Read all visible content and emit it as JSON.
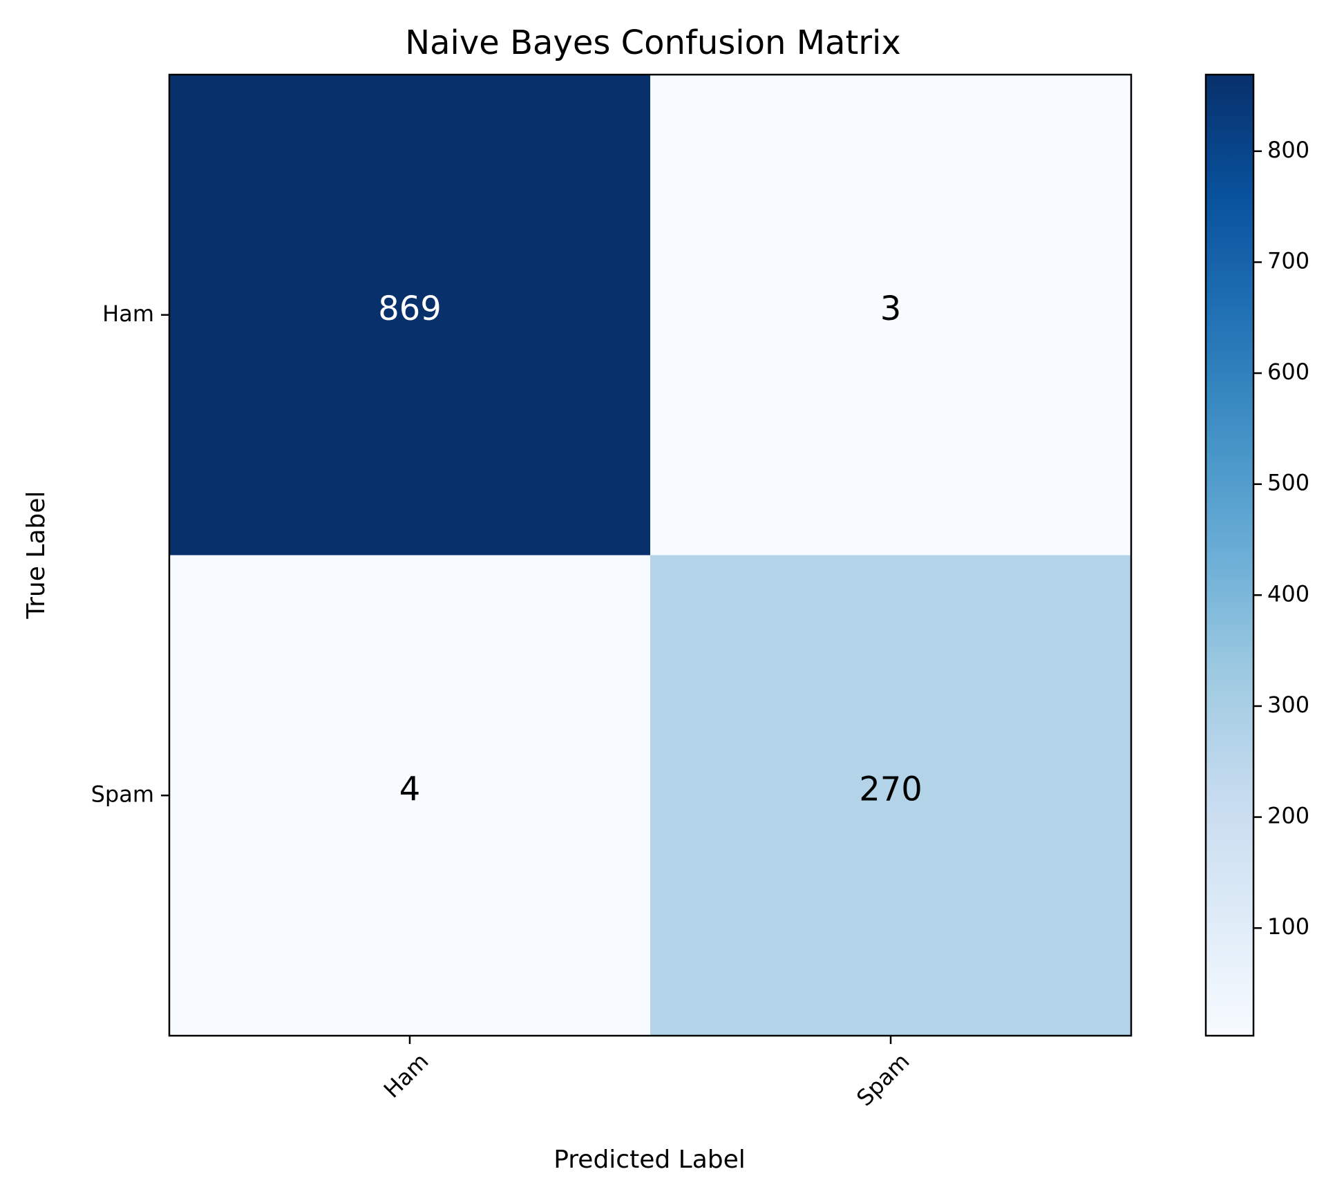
{
  "chart_data": {
    "type": "heatmap",
    "title": "Naive Bayes Confusion Matrix",
    "xlabel": "Predicted Label",
    "ylabel": "True Label",
    "x_categories": [
      "Ham",
      "Spam"
    ],
    "y_categories": [
      "Ham",
      "Spam"
    ],
    "matrix": [
      [
        869,
        3
      ],
      [
        4,
        270
      ]
    ],
    "colormap": "Blues",
    "color_range": [
      3,
      869
    ],
    "colorbar_ticks": [
      "100",
      "200",
      "300",
      "400",
      "500",
      "600",
      "700",
      "800"
    ],
    "grid": false,
    "legend": "colorbar-right"
  }
}
